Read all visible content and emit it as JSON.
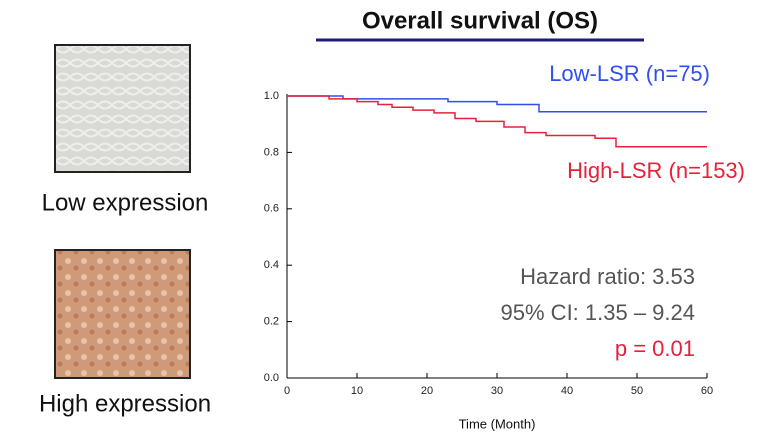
{
  "panels": [
    {
      "caption": "Low expression"
    },
    {
      "caption": "High expression"
    }
  ],
  "chart_data": {
    "type": "line",
    "title": "Overall survival (OS)",
    "x_label": "Time (Month)",
    "xlim": [
      0,
      60
    ],
    "xticks": [
      0,
      10,
      20,
      30,
      40,
      50,
      60
    ],
    "ylim": [
      0,
      1
    ],
    "yticks": [
      {
        "value": 0,
        "label": "0.0"
      },
      0.2,
      0.4,
      0.6,
      0.8,
      {
        "value": 1,
        "label": "1.0"
      }
    ],
    "series": [
      {
        "name": "Low-LSR (n=75)",
        "color": "#2f4ff0",
        "x": [
          0,
          8,
          8,
          23,
          23,
          30,
          30,
          36,
          36,
          60
        ],
        "values": [
          1,
          1,
          0.99,
          0.99,
          0.98,
          0.98,
          0.97,
          0.97,
          0.944,
          0.944
        ]
      },
      {
        "name": "High-LSR (n=153)",
        "color": "#e8203a",
        "x": [
          0,
          6,
          6,
          10,
          10,
          13,
          13,
          15,
          15,
          18,
          18,
          21,
          21,
          24,
          24,
          27,
          27,
          31,
          31,
          34,
          34,
          37,
          37,
          44,
          44,
          47,
          47,
          60
        ],
        "values": [
          1,
          1,
          0.99,
          0.99,
          0.98,
          0.98,
          0.97,
          0.97,
          0.96,
          0.96,
          0.95,
          0.95,
          0.94,
          0.94,
          0.92,
          0.92,
          0.91,
          0.91,
          0.89,
          0.89,
          0.87,
          0.87,
          0.86,
          0.86,
          0.85,
          0.85,
          0.82,
          0.82
        ]
      }
    ],
    "annotations": [
      {
        "text": "Hazard ratio: 3.53",
        "color": "#555555"
      },
      {
        "text": "95% CI: 1.35 – 9.24",
        "color": "#555555"
      },
      {
        "text": "p = 0.01",
        "color": "#e8203a"
      }
    ]
  }
}
